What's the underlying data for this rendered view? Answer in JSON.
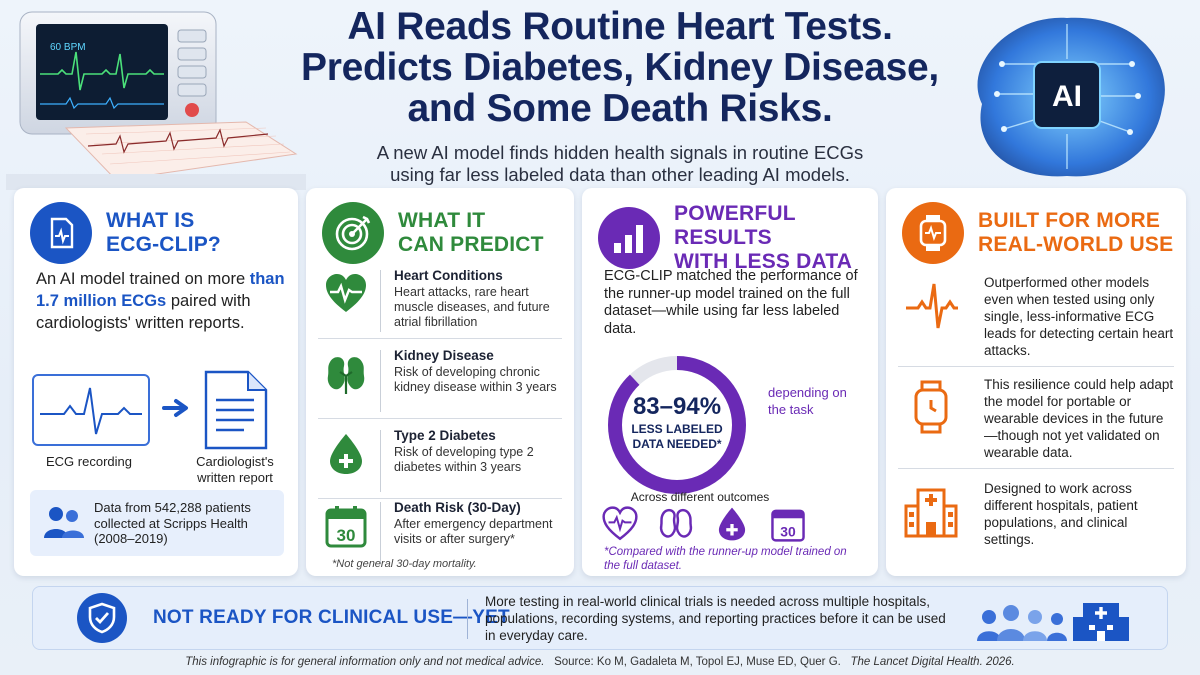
{
  "header": {
    "title_lines": [
      "AI Reads Routine Heart Tests.",
      "Predicts Diabetes, Kidney Disease,",
      "and Some Death Risks."
    ],
    "subtitle_lines": [
      "A new AI model finds hidden health signals in routine ECGs",
      "using far less labeled data than other leading AI models."
    ],
    "monitor_bpm": "60 BPM",
    "brain_chip_label": "AI"
  },
  "card_what_is": {
    "title_line1": "WHAT IS",
    "title_line2": "ECG-CLIP?",
    "text_before": "An AI model trained on more",
    "text_highlight": "than 1.7 million ECGs",
    "text_after": "paired with cardiologists' written reports.",
    "ecg_caption": "ECG recording",
    "report_caption_line1": "Cardiologist's",
    "report_caption_line2": "written report",
    "data_note": "Data from 542,288 patients collected at Scripps Health (2008–2019)"
  },
  "card_predict": {
    "title_line1": "WHAT IT",
    "title_line2": "CAN PREDICT",
    "items": [
      {
        "title": "Heart Conditions",
        "desc": "Heart attacks, rare heart muscle diseases, and future atrial fibrillation",
        "icon": "heart-pulse-icon"
      },
      {
        "title": "Kidney Disease",
        "desc": "Risk of developing chronic kidney disease within 3 years",
        "icon": "kidney-icon"
      },
      {
        "title": "Type 2 Diabetes",
        "desc": "Risk of developing type 2 diabetes within 3 years",
        "icon": "blood-drop-icon"
      },
      {
        "title": "Death Risk (30-Day)",
        "desc": "After emergency department visits or after surgery*",
        "icon": "calendar-icon",
        "calendar_number": "30"
      }
    ],
    "footnote": "*Not general 30-day mortality."
  },
  "card_results": {
    "title_line1": "POWERFUL RESULTS",
    "title_line2": "WITH LESS DATA",
    "text": "ECG-CLIP matched the performance of the runner-up model trained on the full dataset—while using far less labeled data.",
    "donut_value": "83–94%",
    "donut_label_line1": "LESS LABELED",
    "donut_label_line2": "DATA NEEDED*",
    "donut_fill_fraction": 0.88,
    "depending": "depending on the task",
    "across_label": "Across different outcomes",
    "mini_calendar_number": "30",
    "note": "*Compared with the runner-up model trained on the full dataset."
  },
  "card_realworld": {
    "title_line1": "BUILT FOR MORE",
    "title_line2": "REAL-WORLD USE",
    "items": [
      {
        "text": "Outperformed other models even when tested using only single, less-informative ECG leads for detecting certain heart attacks.",
        "icon": "ecg-wave-icon"
      },
      {
        "text": "This resilience could help adapt the model for portable or wearable devices in the future—though not yet validated on wearable data.",
        "icon": "smartwatch-icon"
      },
      {
        "text": "Designed to work across different hospitals, patient populations, and clinical settings.",
        "icon": "hospital-icon"
      }
    ]
  },
  "banner": {
    "title": "NOT READY FOR CLINICAL USE—YET",
    "text": "More testing in real-world clinical trials is needed across multiple hospitals, populations, recording systems, and reporting practices before it can be used in everyday care."
  },
  "footer": {
    "disclaimer": "This infographic is for general information only and not medical advice.",
    "source": "Source: Ko M, Gadaleta M, Topol EJ, Muse ED, Quer G.",
    "journal": "The Lancet Digital Health. 2026."
  },
  "colors": {
    "navy": "#14265e",
    "blue": "#1b55c4",
    "green": "#2f8a3c",
    "purple": "#6a2ab5",
    "orange": "#ea6a12"
  }
}
